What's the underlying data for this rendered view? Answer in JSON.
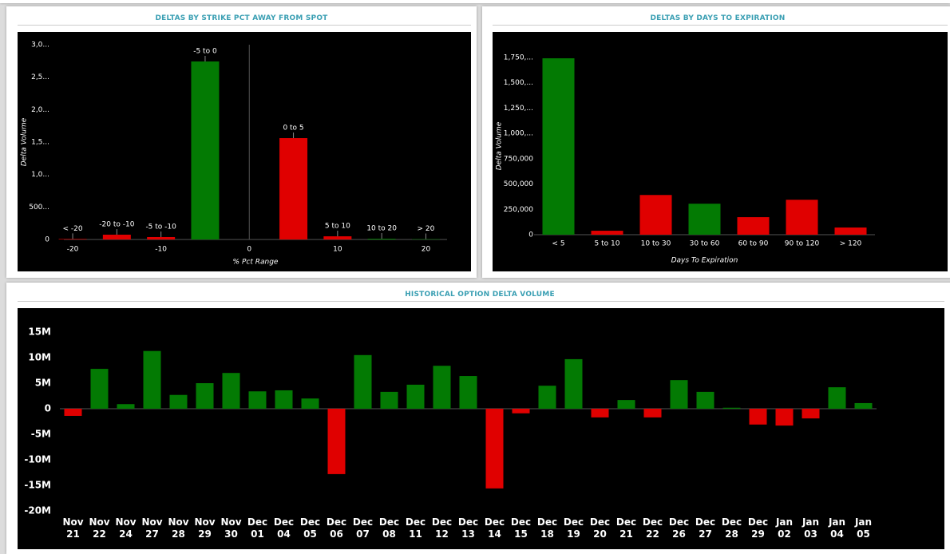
{
  "chart_data": [
    {
      "type": "bar",
      "title": "DELTAS BY STRIKE PCT AWAY FROM SPOT",
      "y_label": "Delta Volume",
      "x_label": "% Pct Range",
      "categories": [
        "< -20",
        "-20 to -10",
        "-5 to -10",
        "-5 to 0",
        "0 to 5",
        "5 to 10",
        "10 to 20",
        "> 20"
      ],
      "x": [
        -20,
        -15,
        -10,
        -5,
        5,
        10,
        15,
        20
      ],
      "values": [
        8000,
        74000,
        37000,
        2742000,
        1561000,
        49000,
        12000,
        6000
      ],
      "colors": [
        "#e00000",
        "#e00000",
        "#e00000",
        "#037a03",
        "#e00000",
        "#e00000",
        "#037a03",
        "#037a03"
      ],
      "xlim": [
        -21,
        22.4
      ],
      "xticks": [
        -20,
        -10,
        0,
        10,
        20
      ],
      "ylim": [
        0,
        3000000
      ],
      "yticks": [
        0,
        {
          "value": 500000,
          "label": "500..."
        },
        {
          "value": 1000000,
          "label": "1,0..."
        },
        {
          "value": 1500000,
          "label": "1,5..."
        },
        {
          "value": 2000000,
          "label": "2,0..."
        },
        {
          "value": 2500000,
          "label": "2,5..."
        },
        {
          "value": 3000000,
          "label": "3,0..."
        }
      ]
    },
    {
      "type": "bar",
      "title": "DELTAS BY DAYS TO EXPIRATION",
      "y_label": "Delta Volume",
      "x_label": "Days To Expiration",
      "categories": [
        "< 5",
        "5 to 10",
        "10 to 30",
        "30 to 60",
        "60 to 90",
        "90 to 120",
        "> 120"
      ],
      "values": [
        1742000,
        39000,
        392000,
        306000,
        173000,
        345000,
        71000
      ],
      "colors": [
        "#037a03",
        "#e00000",
        "#e00000",
        "#037a03",
        "#e00000",
        "#e00000",
        "#e00000"
      ],
      "ylim": [
        0,
        1750000
      ],
      "yticks": [
        0,
        {
          "value": 250000,
          "label": "250,000"
        },
        {
          "value": 500000,
          "label": "500,000"
        },
        {
          "value": 750000,
          "label": "750,000"
        },
        {
          "value": 1000000,
          "label": "1,000,..."
        },
        {
          "value": 1250000,
          "label": "1,250,..."
        },
        {
          "value": 1500000,
          "label": "1,500,..."
        },
        {
          "value": 1750000,
          "label": "1,750,..."
        }
      ]
    },
    {
      "type": "bar",
      "title": "HISTORICAL OPTION DELTA VOLUME",
      "categories": [
        "Nov 21",
        "Nov 22",
        "Nov 24",
        "Nov 27",
        "Nov 28",
        "Nov 29",
        "Nov 30",
        "Dec 01",
        "Dec 04",
        "Dec 05",
        "Dec 06",
        "Dec 07",
        "Dec 08",
        "Dec 11",
        "Dec 12",
        "Dec 13",
        "Dec 14",
        "Dec 15",
        "Dec 18",
        "Dec 19",
        "Dec 20",
        "Dec 21",
        "Dec 22",
        "Dec 26",
        "Dec 27",
        "Dec 28",
        "Dec 29",
        "Jan 02",
        "Jan 03",
        "Jan 04",
        "Jan 05"
      ],
      "values": [
        -1400000,
        7800000,
        900000,
        11300000,
        2700000,
        5000000,
        7000000,
        3400000,
        3600000,
        2000000,
        -12800000,
        10500000,
        3300000,
        4700000,
        8400000,
        6400000,
        -15600000,
        -900000,
        4500000,
        9700000,
        -1700000,
        1700000,
        -1700000,
        5600000,
        3300000,
        200000,
        -3100000,
        -3300000,
        -1900000,
        4200000,
        1100000
      ],
      "positive_color": "#037a03",
      "negative_color": "#e00000",
      "ylim": [
        -20000000,
        15000000
      ],
      "yticks": [
        {
          "value": 15000000,
          "label": "15M"
        },
        {
          "value": 10000000,
          "label": "10M"
        },
        {
          "value": 5000000,
          "label": "5M"
        },
        0,
        {
          "value": -5000000,
          "label": "-5M"
        },
        {
          "value": -10000000,
          "label": "-10M"
        },
        {
          "value": -15000000,
          "label": "-15M"
        },
        {
          "value": -20000000,
          "label": "-20M"
        }
      ]
    }
  ]
}
